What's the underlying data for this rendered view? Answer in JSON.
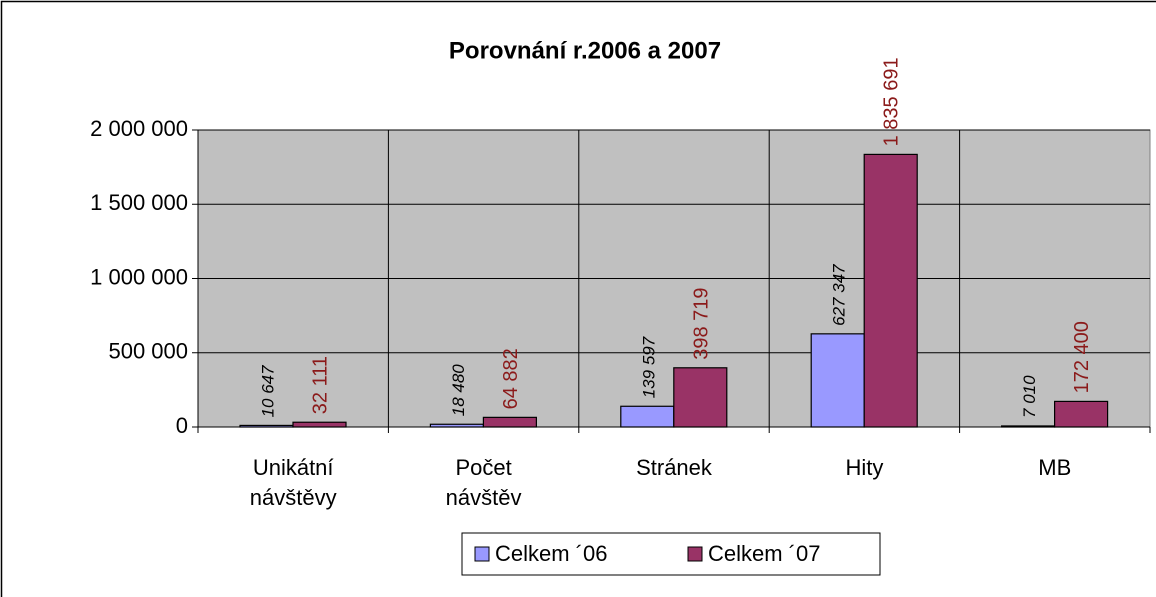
{
  "chart_data": {
    "type": "bar",
    "title": "Porovnání r.2006 a 2007",
    "categories": [
      "Unikátní návštěvy",
      "Počet návštěv",
      "Stránek",
      "Hity",
      "MB"
    ],
    "series": [
      {
        "name": "Celkem ´06",
        "color": "#9999ff",
        "values": [
          10647,
          18480,
          139597,
          627347,
          7010
        ],
        "value_labels": [
          "10 647",
          "18 480",
          "139 597",
          "627 347",
          "7 010"
        ]
      },
      {
        "name": "Celkem ´07",
        "color": "#993366",
        "values": [
          32111,
          64882,
          398719,
          1835691,
          172400
        ],
        "value_labels": [
          "32 111",
          "64 882",
          "398 719",
          "1 835 691",
          "172 400"
        ]
      }
    ],
    "ylim": [
      0,
      2000000
    ],
    "yticks": [
      0,
      {
        "value": 500000,
        "label": "500 000"
      },
      {
        "value": 1000000,
        "label": "1 000 000"
      },
      {
        "value": 1500000,
        "label": "1 500 000"
      },
      {
        "value": 2000000,
        "label": "2 000 000"
      }
    ],
    "grid": true,
    "legend": "bottom"
  }
}
